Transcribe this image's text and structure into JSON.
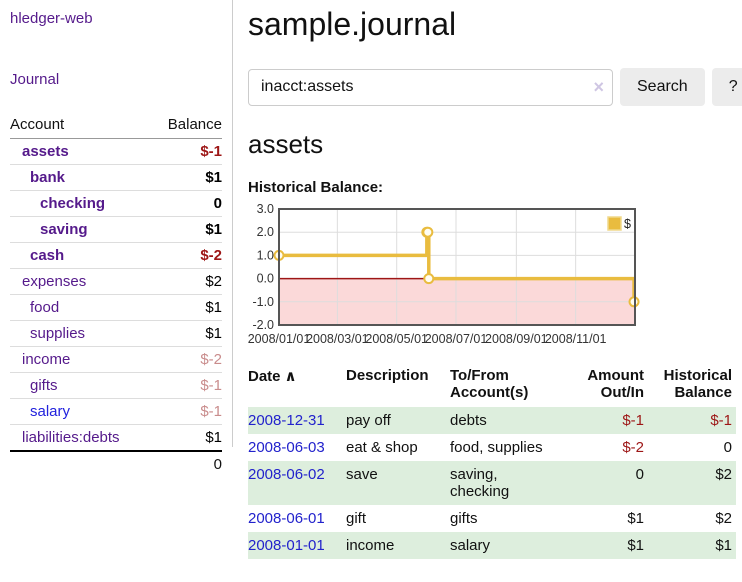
{
  "sidebar": {
    "app_title": "hledger-web",
    "journal_link": "Journal",
    "accounts_table": {
      "headers": [
        "Account",
        "Balance"
      ],
      "rows": [
        {
          "account": "assets",
          "balance": "$-1",
          "level": 1,
          "bold": true,
          "color": "purple",
          "balance_class": "neg-strong"
        },
        {
          "account": "bank",
          "balance": "$1",
          "level": 2,
          "bold": true,
          "color": "purple",
          "balance_class": "pos-strong"
        },
        {
          "account": "checking",
          "balance": "0",
          "level": 3,
          "bold": true,
          "color": "purple",
          "balance_class": "pos-strong"
        },
        {
          "account": "saving",
          "balance": "$1",
          "level": 3,
          "bold": true,
          "color": "purple",
          "balance_class": "pos-strong"
        },
        {
          "account": "cash",
          "balance": "$-2",
          "level": 2,
          "bold": true,
          "color": "purple",
          "balance_class": "neg-strong"
        },
        {
          "account": "expenses",
          "balance": "$2",
          "level": 1,
          "bold": false,
          "color": "purple",
          "balance_class": "pos"
        },
        {
          "account": "food",
          "balance": "$1",
          "level": 2,
          "bold": false,
          "color": "purple",
          "balance_class": "pos"
        },
        {
          "account": "supplies",
          "balance": "$1",
          "level": 2,
          "bold": false,
          "color": "purple",
          "balance_class": "pos"
        },
        {
          "account": "income",
          "balance": "$-2",
          "level": 1,
          "bold": false,
          "color": "purple",
          "balance_class": "neg-weak"
        },
        {
          "account": "gifts",
          "balance": "$-1",
          "level": 2,
          "bold": false,
          "color": "purple",
          "balance_class": "neg-weak"
        },
        {
          "account": "salary",
          "balance": "$-1",
          "level": 2,
          "bold": false,
          "color": "blue",
          "balance_class": "neg-weak"
        },
        {
          "account": "liabilities:debts",
          "balance": "$1",
          "level": 1,
          "bold": false,
          "color": "purple",
          "balance_class": "pos"
        }
      ],
      "total": "0"
    }
  },
  "main": {
    "title": "sample.journal",
    "search": {
      "value": "inacct:assets",
      "clear_icon": "×",
      "button": "Search",
      "help_button": "?"
    },
    "section_title": "assets",
    "chart_label": "Historical Balance:",
    "register_table": {
      "headers": [
        {
          "lines": "Date",
          "icon": "∧",
          "align": "left"
        },
        {
          "lines": "Description",
          "align": "left"
        },
        {
          "lines": "To/From\nAccount(s)",
          "align": "left"
        },
        {
          "lines": "Amount\nOut/In",
          "align": "right"
        },
        {
          "lines": "Historical\nBalance",
          "align": "right"
        }
      ],
      "rows": [
        {
          "date": "2008-12-31",
          "description": "pay off",
          "accounts": "debts",
          "amount": "$-1",
          "amount_class": "neg",
          "balance": "$-1",
          "balance_class": "neg",
          "shaded": true
        },
        {
          "date": "2008-06-03",
          "description": "eat & shop",
          "accounts": "food, supplies",
          "amount": "$-2",
          "amount_class": "neg",
          "balance": "0",
          "balance_class": "pos",
          "shaded": false
        },
        {
          "date": "2008-06-02",
          "description": "save",
          "accounts": "saving,\nchecking",
          "amount": "0",
          "amount_class": "pos",
          "balance": "$2",
          "balance_class": "pos",
          "shaded": true
        },
        {
          "date": "2008-06-01",
          "description": "gift",
          "accounts": "gifts",
          "amount": "$1",
          "amount_class": "pos",
          "balance": "$2",
          "balance_class": "pos",
          "shaded": false
        },
        {
          "date": "2008-01-01",
          "description": "income",
          "accounts": "salary",
          "amount": "$1",
          "amount_class": "pos",
          "balance": "$1",
          "balance_class": "pos",
          "shaded": true
        }
      ]
    }
  },
  "chart_data": {
    "type": "line",
    "style": "step-after",
    "title": "Historical Balance:",
    "series": [
      {
        "name": "$",
        "color": "#e9bc3f",
        "points": [
          {
            "date": "2008-01-01",
            "value": 1
          },
          {
            "date": "2008-06-01",
            "value": 2
          },
          {
            "date": "2008-06-02",
            "value": 2
          },
          {
            "date": "2008-06-03",
            "value": 0
          },
          {
            "date": "2008-12-31",
            "value": -1
          }
        ]
      }
    ],
    "x_range": [
      "2008-01-01",
      "2009-01-01"
    ],
    "x_ticks": [
      "2008/01/01",
      "2008/03/01",
      "2008/05/01",
      "2008/07/01",
      "2008/09/01",
      "2008/11/01"
    ],
    "y_ticks": [
      3.0,
      2.0,
      1.0,
      0.0,
      -1.0,
      -2.0
    ],
    "ylim": [
      -2,
      3
    ],
    "grid": true,
    "legend": {
      "label": "$",
      "position": "top-right"
    },
    "negative_region_color": "#fbd9d9",
    "zero_line_color": "#9e1616",
    "border_color": "#555",
    "grid_color": "#ddd",
    "marker_fill": "#fffdf3"
  },
  "colors": {
    "link_purple": "#551a8b",
    "link_blue": "#2222dd",
    "date_link_blue": "#2222cc",
    "negative_strong": "#9d1616",
    "negative_weak": "#c98c8c",
    "row_shade_green": "#ddeedd",
    "chart_gold": "#e9bc3f"
  }
}
